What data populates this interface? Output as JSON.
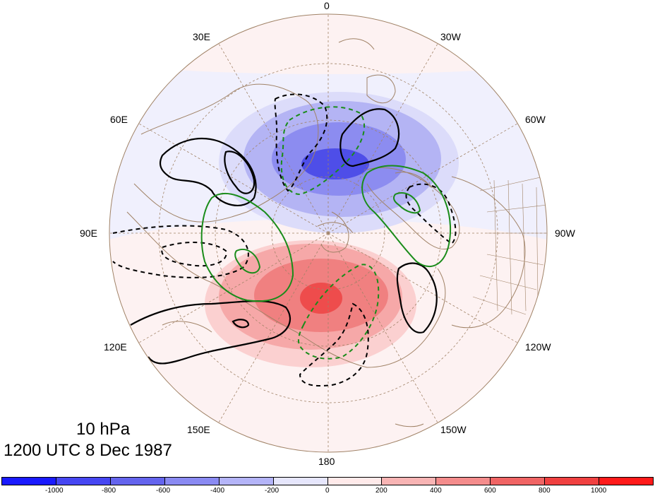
{
  "title": {
    "level": "10 hPa",
    "datetime": "1200 UTC 8 Dec 1987"
  },
  "longitude_labels": {
    "lon_0": "0",
    "lon_30w": "30W",
    "lon_60w": "60W",
    "lon_90w": "90W",
    "lon_120w": "120W",
    "lon_150w": "150W",
    "lon_180": "180",
    "lon_150e": "150E",
    "lon_120e": "120E",
    "lon_90e": "90E",
    "lon_60e": "60E",
    "lon_30e": "30E"
  },
  "colorbar": {
    "colors": [
      "#1a1aff",
      "#4646f2",
      "#6464ee",
      "#8a8af2",
      "#b4b4f8",
      "#e6e6fc",
      "#ffeaea",
      "#f8b4b4",
      "#f48c8c",
      "#f06464",
      "#f04040",
      "#ff1a1a"
    ],
    "labels": [
      "-1000",
      "-800",
      "-600",
      "-400",
      "-200",
      "0",
      "200",
      "400",
      "600",
      "800",
      "1000"
    ]
  },
  "colors": {
    "coast": "#a08266",
    "graticule": "#a08266",
    "contour_black": "#000000",
    "contour_green": "#1a8c1a"
  }
}
